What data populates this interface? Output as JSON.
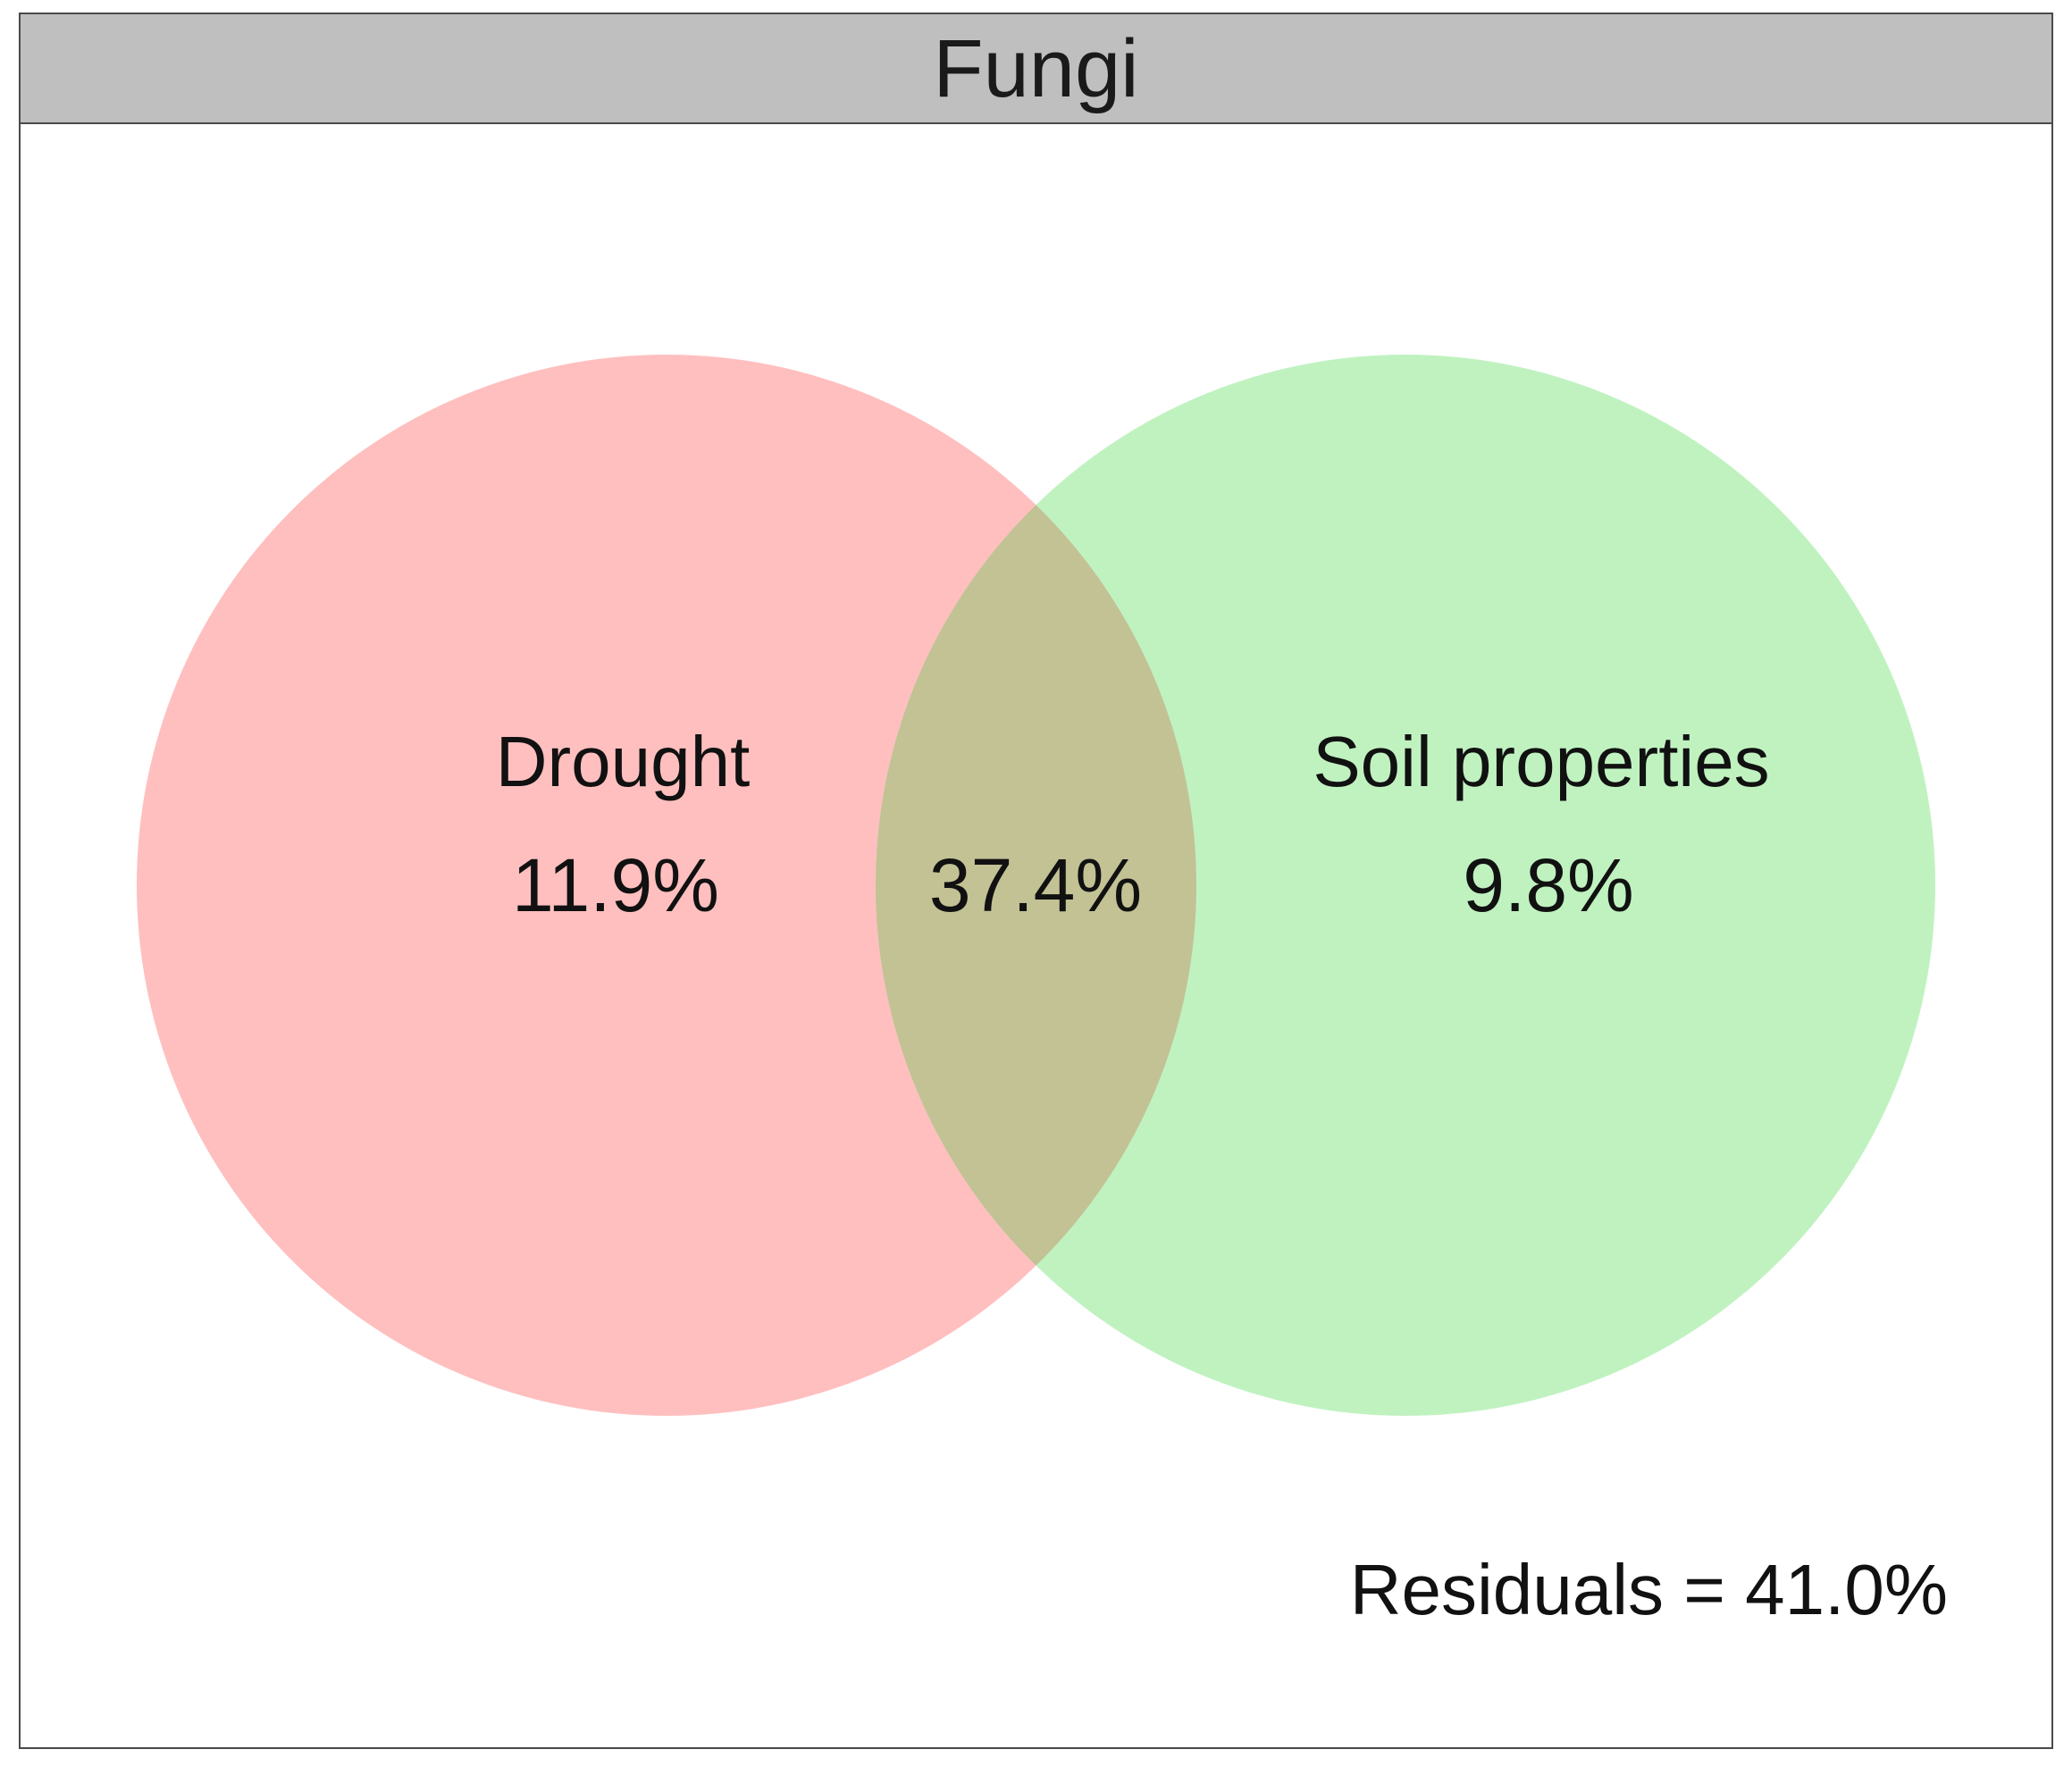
{
  "panel": {
    "title": "Fungi"
  },
  "venn": {
    "sets": [
      {
        "key": "drought",
        "label": "Drought",
        "value": "11.9%",
        "color": "#ffbfbf"
      },
      {
        "key": "soil",
        "label": "Soil properties",
        "value": "9.8%",
        "color": "#c0f2c0"
      }
    ],
    "intersection": {
      "value": "37.4%",
      "color": "#c2c295"
    },
    "residuals": "Residuals = 41.0%"
  }
}
